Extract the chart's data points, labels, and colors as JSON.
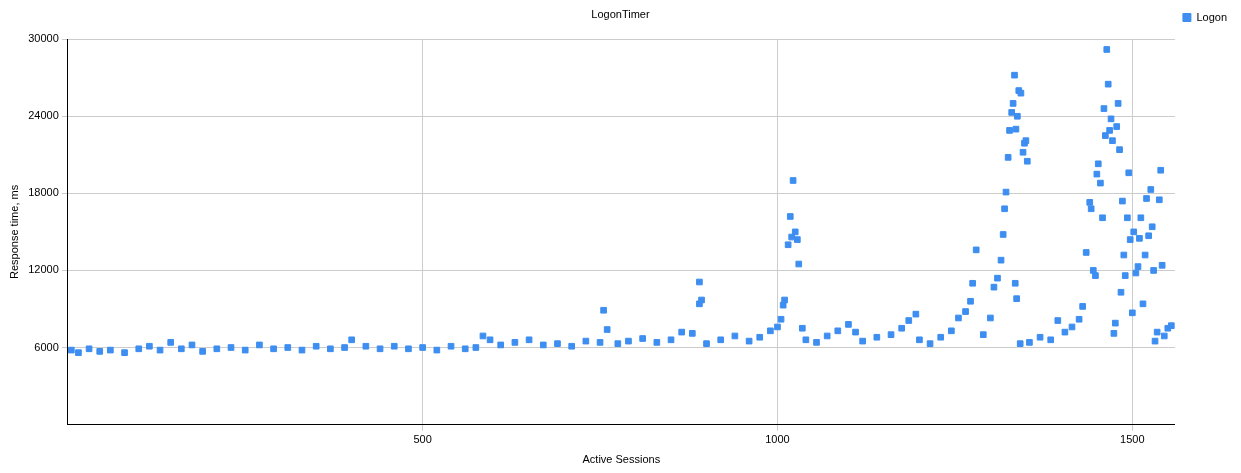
{
  "chart_data": {
    "type": "scatter",
    "title": "LogonTimer",
    "xlabel": "Active Sessions",
    "ylabel": "Response time, ms",
    "xlim": [
      0,
      1560
    ],
    "xticks": [
      500,
      1000,
      1500
    ],
    "ylim": [
      0,
      30000
    ],
    "yticks": [
      6000,
      12000,
      18000,
      24000,
      30000
    ],
    "grid": true,
    "legend": "top right",
    "marker": "square",
    "series": [
      {
        "name": "Logon",
        "color": "#3d8ef0",
        "x": [
          5,
          15,
          30,
          45,
          60,
          80,
          100,
          115,
          130,
          145,
          160,
          175,
          190,
          210,
          230,
          250,
          270,
          290,
          310,
          330,
          350,
          370,
          390,
          400,
          420,
          440,
          460,
          480,
          500,
          520,
          540,
          560,
          575,
          585,
          595,
          610,
          630,
          650,
          670,
          690,
          710,
          730,
          750,
          755,
          760,
          775,
          790,
          810,
          830,
          850,
          865,
          880,
          890,
          890,
          893,
          900,
          920,
          940,
          960,
          975,
          990,
          1000,
          1005,
          1008,
          1010,
          1015,
          1018,
          1020,
          1022,
          1025,
          1028,
          1030,
          1035,
          1040,
          1055,
          1070,
          1085,
          1100,
          1110,
          1120,
          1140,
          1160,
          1175,
          1185,
          1195,
          1200,
          1215,
          1230,
          1245,
          1255,
          1265,
          1272,
          1275,
          1280,
          1290,
          1300,
          1305,
          1310,
          1315,
          1318,
          1320,
          1322,
          1325,
          1327,
          1330,
          1332,
          1334,
          1336,
          1338,
          1340,
          1343,
          1346,
          1348,
          1350,
          1352,
          1335,
          1337,
          1342,
          1355,
          1370,
          1385,
          1395,
          1405,
          1415,
          1425,
          1430,
          1435,
          1440,
          1442,
          1445,
          1448,
          1450,
          1452,
          1455,
          1458,
          1460,
          1462,
          1464,
          1466,
          1468,
          1470,
          1472,
          1474,
          1476,
          1478,
          1480,
          1482,
          1484,
          1486,
          1488,
          1490,
          1493,
          1495,
          1497,
          1500,
          1502,
          1505,
          1508,
          1510,
          1512,
          1515,
          1518,
          1520,
          1523,
          1526,
          1528,
          1530,
          1532,
          1535,
          1538,
          1540,
          1542,
          1545,
          1550,
          1555
        ],
        "values": [
          5800,
          5600,
          5900,
          5700,
          5800,
          5600,
          5900,
          6100,
          5800,
          6400,
          5900,
          6200,
          5700,
          5900,
          6000,
          5800,
          6200,
          5900,
          6000,
          5800,
          6100,
          5900,
          6000,
          6600,
          6100,
          5900,
          6100,
          5900,
          6000,
          5800,
          6100,
          5900,
          6000,
          6900,
          6600,
          6200,
          6400,
          6600,
          6200,
          6300,
          6100,
          6500,
          6400,
          8900,
          7400,
          6300,
          6500,
          6700,
          6400,
          6600,
          7200,
          7100,
          11100,
          9400,
          9700,
          6300,
          6600,
          6900,
          6500,
          6800,
          7300,
          7600,
          8200,
          9300,
          9700,
          14000,
          16200,
          14600,
          19000,
          15000,
          14400,
          12500,
          7500,
          6600,
          6400,
          6900,
          7300,
          7800,
          7200,
          6500,
          6800,
          7000,
          7500,
          8100,
          8600,
          6600,
          6300,
          6800,
          7300,
          8300,
          8800,
          9600,
          11000,
          13600,
          7000,
          8300,
          10700,
          11400,
          12800,
          14800,
          16800,
          18100,
          20800,
          22900,
          24300,
          25000,
          27200,
          23000,
          24000,
          26000,
          25800,
          21200,
          21900,
          22100,
          20500,
          11000,
          9800,
          6300,
          6400,
          6800,
          6600,
          8100,
          7200,
          7600,
          8200,
          9200,
          13400,
          17300,
          16800,
          12000,
          11600,
          19500,
          20300,
          18800,
          16100,
          24600,
          22500,
          29200,
          26500,
          22900,
          23800,
          22100,
          7100,
          7900,
          23200,
          25000,
          21400,
          10300,
          17400,
          13200,
          11600,
          16100,
          19600,
          14400,
          8700,
          15000,
          11800,
          12300,
          14500,
          16100,
          9400,
          13200,
          17600,
          14700,
          18300,
          15400,
          12000,
          6500,
          7200,
          17500,
          19800,
          12400,
          6900,
          7500,
          7700
        ]
      }
    ]
  }
}
